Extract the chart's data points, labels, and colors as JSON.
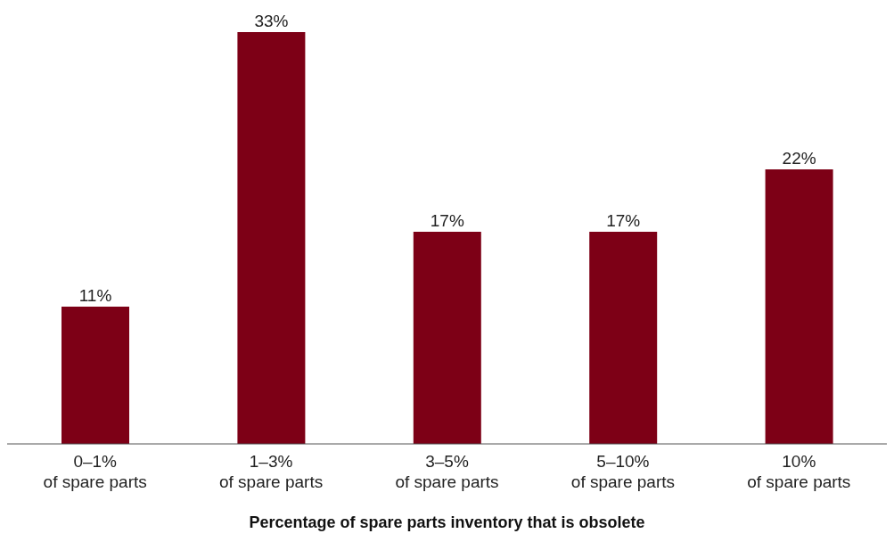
{
  "chart_data": {
    "type": "bar",
    "xlabel": "Percentage of spare parts inventory that is obsolete",
    "categories": [
      "0–1%\nof spare parts",
      "1–3%\nof spare parts",
      "3–5%\nof spare parts",
      "5–10%\nof spare parts",
      "10%\nof spare parts"
    ],
    "values": [
      11,
      33,
      17,
      17,
      22
    ],
    "value_labels": [
      "11%",
      "33%",
      "17%",
      "17%",
      "22%"
    ],
    "color": "#7d0016",
    "grid": false
  }
}
